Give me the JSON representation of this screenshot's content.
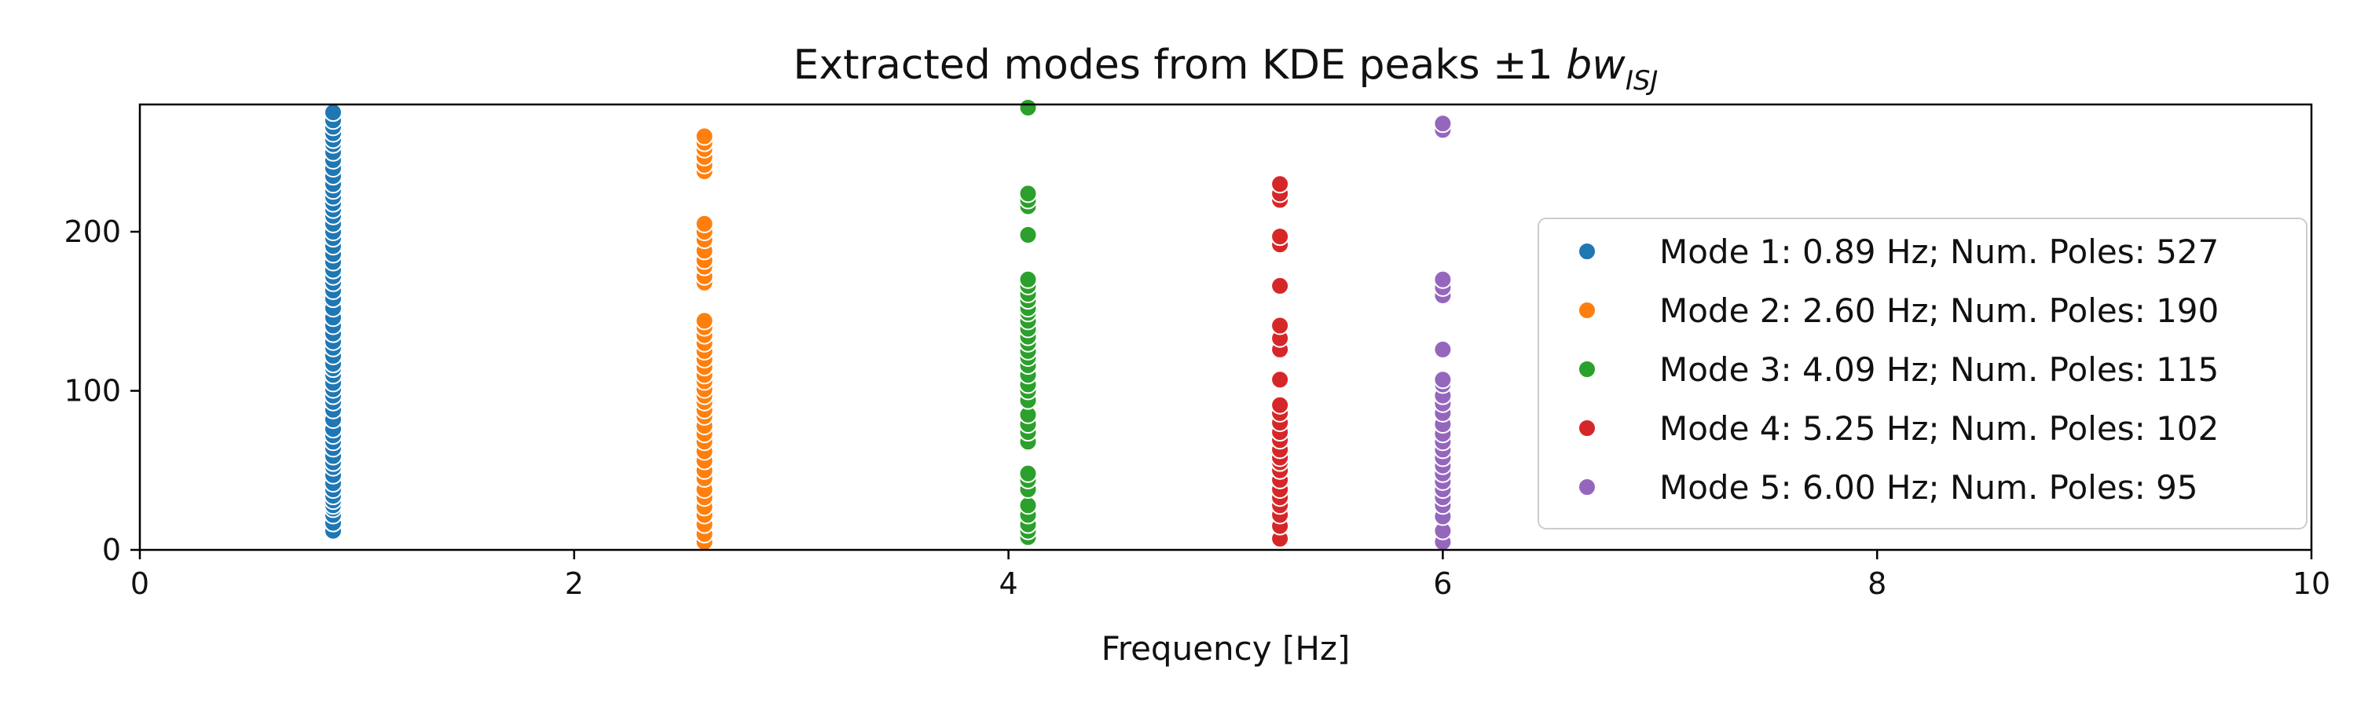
{
  "chart_data": {
    "type": "scatter",
    "title": "Extracted modes from KDE peaks ±1 bw_ISJ",
    "title_parts": {
      "main": "Extracted modes from KDE peaks ±1 ",
      "italic": "bw",
      "subscript": "ISJ"
    },
    "xlabel": "Frequency [Hz]",
    "ylabel": "",
    "xlim": [
      0,
      10
    ],
    "ylim": [
      0,
      280
    ],
    "xticks": [
      0,
      2,
      4,
      6,
      8,
      10
    ],
    "yticks": [
      0,
      100,
      200
    ],
    "grid": false,
    "legend_position": "right",
    "series": [
      {
        "name": "Mode 1: 0.89 Hz; Num. Poles: 527",
        "color": "#1f77b4",
        "x": 0.89,
        "y": [
          12,
          17,
          22,
          26,
          28,
          31,
          34,
          38,
          42,
          47,
          52,
          55,
          59,
          64,
          68,
          72,
          76,
          82,
          88,
          93,
          97,
          101,
          105,
          110,
          114,
          117,
          122,
          127,
          131,
          136,
          141,
          146,
          152,
          158,
          163,
          168,
          172,
          176,
          181,
          186,
          191,
          196,
          200,
          205,
          210,
          214,
          218,
          222,
          226,
          230,
          235,
          240,
          245,
          250,
          255,
          258,
          262,
          266,
          270,
          275
        ]
      },
      {
        "name": "Mode 2: 2.60 Hz; Num. Poles: 190",
        "color": "#ff7f0e",
        "x": 2.6,
        "y": [
          5,
          10,
          16,
          22,
          27,
          33,
          38,
          45,
          50,
          56,
          62,
          68,
          73,
          78,
          84,
          88,
          93,
          97,
          101,
          106,
          110,
          115,
          120,
          125,
          130,
          135,
          140,
          144,
          168,
          172,
          178,
          182,
          188,
          195,
          200,
          205,
          238,
          242,
          247,
          252,
          256,
          260
        ]
      },
      {
        "name": "Mode 3: 4.09 Hz; Num. Poles: 115",
        "color": "#2ca02c",
        "x": 4.09,
        "y": [
          8,
          12,
          16,
          22,
          28,
          38,
          44,
          48,
          68,
          74,
          79,
          85,
          94,
          100,
          104,
          110,
          116,
          121,
          125,
          130,
          134,
          139,
          144,
          149,
          152,
          157,
          161,
          166,
          170,
          198,
          216,
          220,
          224,
          278
        ]
      },
      {
        "name": "Mode 4: 5.25 Hz; Num. Poles: 102",
        "color": "#d62728",
        "x": 5.25,
        "y": [
          7,
          15,
          22,
          28,
          33,
          38,
          44,
          50,
          55,
          58,
          63,
          69,
          74,
          80,
          86,
          91,
          107,
          126,
          133,
          141,
          166,
          192,
          197,
          220,
          224,
          230
        ]
      },
      {
        "name": "Mode 5: 6.00 Hz; Num. Poles: 95",
        "color": "#9467bd",
        "x": 6.0,
        "y": [
          5,
          12,
          21,
          28,
          33,
          38,
          43,
          48,
          53,
          58,
          63,
          68,
          73,
          79,
          86,
          92,
          97,
          104,
          107,
          126,
          160,
          165,
          170,
          264,
          268
        ]
      }
    ]
  }
}
